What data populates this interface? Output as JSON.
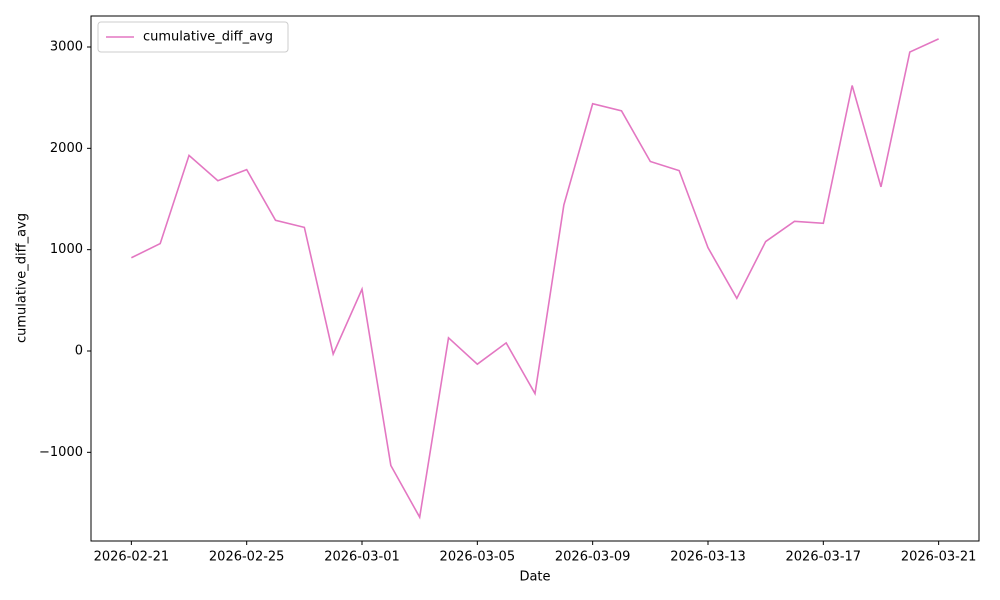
{
  "chart_data": {
    "type": "line",
    "x": [
      "2026-02-21",
      "2026-02-22",
      "2026-02-23",
      "2026-02-24",
      "2026-02-25",
      "2026-02-26",
      "2026-02-27",
      "2026-02-28",
      "2026-03-01",
      "2026-03-02",
      "2026-03-03",
      "2026-03-04",
      "2026-03-05",
      "2026-03-06",
      "2026-03-07",
      "2026-03-08",
      "2026-03-09",
      "2026-03-10",
      "2026-03-11",
      "2026-03-12",
      "2026-03-13",
      "2026-03-14",
      "2026-03-15",
      "2026-03-16",
      "2026-03-17",
      "2026-03-18",
      "2026-03-19",
      "2026-03-20",
      "2026-03-21"
    ],
    "series": [
      {
        "name": "cumulative_diff_avg",
        "color": "#e377c2",
        "values": [
          920,
          1060,
          1930,
          1680,
          1790,
          1290,
          1220,
          -30,
          610,
          -1130,
          -1640,
          130,
          -130,
          80,
          -420,
          1440,
          2440,
          2370,
          1870,
          1780,
          1020,
          520,
          1080,
          1280,
          1260,
          2620,
          1620,
          2950,
          3080
        ]
      }
    ],
    "xlabel": "Date",
    "ylabel": "cumulative_diff_avg",
    "xticks": [
      "2026-02-21",
      "2026-02-25",
      "2026-03-01",
      "2026-03-05",
      "2026-03-09",
      "2026-03-13",
      "2026-03-17",
      "2026-03-21"
    ],
    "ylim": [
      -1875,
      3306
    ],
    "yticks": [
      {
        "value": -1000,
        "label": "−1000"
      },
      0,
      1000,
      2000,
      3000
    ],
    "legend": "upper left"
  }
}
